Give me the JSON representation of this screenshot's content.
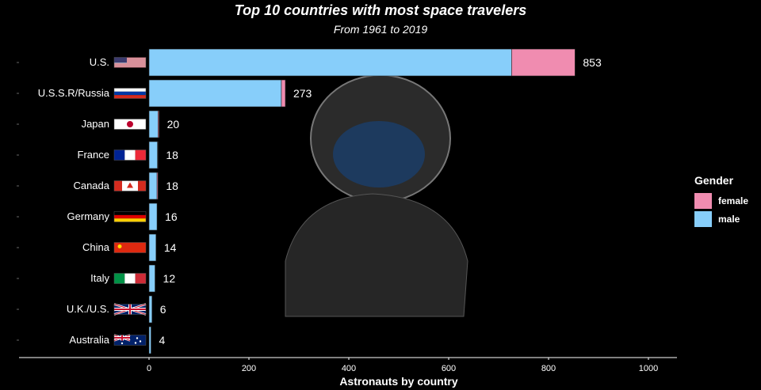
{
  "chart_data": {
    "type": "bar",
    "title": "Top 10 countries with most space travelers",
    "subtitle": "From 1961 to 2019",
    "xlabel": "Astronauts by country",
    "ylabel": "",
    "orientation": "horizontal",
    "stacked": true,
    "xlim": [
      0,
      1000
    ],
    "x_ticks": [
      0,
      200,
      400,
      600,
      800,
      1000
    ],
    "categories": [
      "U.S.",
      "U.S.S.R/Russia",
      "Japan",
      "France",
      "Canada",
      "Germany",
      "China",
      "Italy",
      "U.K./U.S.",
      "Australia"
    ],
    "flags": [
      "us-flag",
      "russia-flag",
      "japan-flag",
      "france-flag",
      "canada-flag",
      "germany-flag",
      "china-flag",
      "italy-flag",
      "uk-flag",
      "australia-flag"
    ],
    "totals": [
      853,
      273,
      20,
      18,
      18,
      16,
      14,
      12,
      6,
      4
    ],
    "series": [
      {
        "name": "male",
        "color": "#87CEFA",
        "values": [
          726,
          265,
          18,
          17,
          16,
          16,
          14,
          12,
          6,
          4
        ]
      },
      {
        "name": "female",
        "color": "#F08CB0",
        "values": [
          127,
          8,
          2,
          1,
          2,
          0,
          0,
          0,
          0,
          0
        ]
      }
    ],
    "legend": {
      "title": "Gender",
      "position": "right",
      "entries": [
        "female",
        "male"
      ]
    },
    "background": "#000000",
    "grid": false
  }
}
